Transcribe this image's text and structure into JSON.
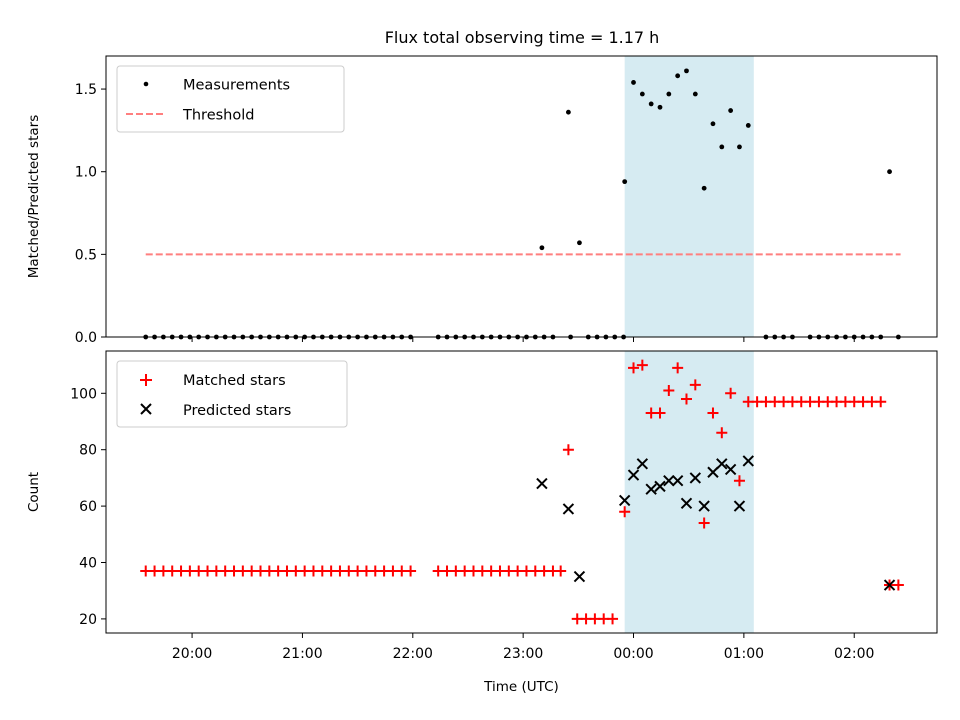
{
  "figure": {
    "title": "Flux total observing time = 1.17 h",
    "xlabel": "Time (UTC)",
    "x_tick_labels": [
      "20:00",
      "21:00",
      "22:00",
      "23:00",
      "00:00",
      "01:00",
      "02:00"
    ],
    "highlight_color": "#add8e6"
  },
  "chart_data": [
    {
      "type": "scatter",
      "title": "Flux total observing time = 1.17 h",
      "xlabel": "",
      "ylabel": "Matched/Predicted stars",
      "x_unit": "hours relative to 00:00 UTC (negative = before midnight)",
      "xlim": [
        -4.78,
        2.75
      ],
      "ylim": [
        0,
        1.7
      ],
      "y_ticks": [
        0.0,
        0.5,
        1.0,
        1.5
      ],
      "y_tick_labels": [
        "0.0",
        "0.5",
        "1.0",
        "1.5"
      ],
      "highlight_span": [
        -0.08,
        1.09
      ],
      "legend": {
        "position": "top-left",
        "entries": [
          "Measurements",
          "Threshold"
        ]
      },
      "series": [
        {
          "name": "Measurements",
          "marker": "dot",
          "color": "#000000",
          "x": [
            -4.42,
            -4.34,
            -4.26,
            -4.18,
            -4.1,
            -4.02,
            -3.94,
            -3.86,
            -3.78,
            -3.7,
            -3.62,
            -3.54,
            -3.46,
            -3.38,
            -3.3,
            -3.22,
            -3.14,
            -3.06,
            -2.98,
            -2.9,
            -2.82,
            -2.74,
            -2.66,
            -2.58,
            -2.5,
            -2.42,
            -2.34,
            -2.26,
            -2.18,
            -2.1,
            -2.02,
            -1.77,
            -1.69,
            -1.61,
            -1.53,
            -1.45,
            -1.37,
            -1.29,
            -1.21,
            -1.13,
            -1.05,
            -0.97,
            -0.89,
            -0.81,
            -0.73,
            -0.57,
            -0.41,
            -0.33,
            -0.25,
            -0.17,
            -0.09,
            -0.08,
            0.0,
            0.08,
            0.16,
            0.24,
            0.32,
            0.4,
            0.48,
            0.56,
            0.64,
            0.72,
            0.8,
            0.88,
            0.96,
            1.04,
            1.2,
            1.28,
            1.36,
            1.44,
            1.6,
            1.68,
            1.76,
            1.84,
            1.92,
            2.0,
            2.08,
            2.16,
            2.24,
            2.32,
            2.4
          ],
          "y": [
            0,
            0,
            0,
            0,
            0,
            0,
            0,
            0,
            0,
            0,
            0,
            0,
            0,
            0,
            0,
            0,
            0,
            0,
            0,
            0,
            0,
            0,
            0,
            0,
            0,
            0,
            0,
            0,
            0,
            0,
            0,
            0,
            0,
            0,
            0,
            0,
            0,
            0,
            0,
            0,
            0,
            0,
            0,
            0,
            0,
            0,
            0,
            0,
            0,
            0,
            0,
            0.94,
            1.54,
            1.47,
            1.41,
            1.39,
            1.47,
            1.58,
            1.61,
            1.47,
            0.9,
            1.29,
            1.15,
            1.37,
            1.15,
            1.28,
            0,
            0,
            0,
            0,
            0,
            0,
            0,
            0,
            0,
            0,
            0,
            0,
            0,
            1.0,
            0
          ]
        },
        {
          "name": "Threshold",
          "marker": "line-dashed",
          "color": "#ff7f7f",
          "x": [
            -4.42,
            2.42
          ],
          "y": [
            0.5,
            0.5
          ]
        }
      ],
      "extra_points": {
        "x": [
          -0.83,
          -0.59,
          -0.49
        ],
        "y": [
          0.54,
          1.36,
          0.57
        ]
      }
    },
    {
      "type": "scatter",
      "xlabel": "Time (UTC)",
      "ylabel": "Count",
      "x_unit": "hours relative to 00:00 UTC (negative = before midnight)",
      "xlim": [
        -4.78,
        2.75
      ],
      "ylim": [
        15,
        115
      ],
      "y_ticks": [
        20,
        40,
        60,
        80,
        100
      ],
      "y_tick_labels": [
        "20",
        "40",
        "60",
        "80",
        "100"
      ],
      "x_ticks": [
        -4,
        -3,
        -2,
        -1,
        0,
        1,
        2
      ],
      "x_tick_labels": [
        "20:00",
        "21:00",
        "22:00",
        "23:00",
        "00:00",
        "01:00",
        "02:00"
      ],
      "highlight_span": [
        -0.08,
        1.09
      ],
      "legend": {
        "position": "top-left",
        "entries": [
          "Matched stars",
          "Predicted stars"
        ]
      },
      "series": [
        {
          "name": "Matched stars",
          "marker": "plus",
          "color": "#ff0000",
          "x": [
            -4.42,
            -4.34,
            -4.26,
            -4.18,
            -4.1,
            -4.02,
            -3.94,
            -3.86,
            -3.78,
            -3.7,
            -3.62,
            -3.54,
            -3.46,
            -3.38,
            -3.3,
            -3.22,
            -3.14,
            -3.06,
            -2.98,
            -2.9,
            -2.82,
            -2.74,
            -2.66,
            -2.58,
            -2.5,
            -2.42,
            -2.34,
            -2.26,
            -2.18,
            -2.1,
            -2.02,
            -1.77,
            -1.69,
            -1.61,
            -1.53,
            -1.45,
            -1.37,
            -1.29,
            -1.21,
            -1.13,
            -1.05,
            -0.97,
            -0.89,
            -0.81,
            -0.73,
            -0.66,
            -0.59,
            -0.51,
            -0.43,
            -0.35,
            -0.27,
            -0.19,
            -0.08,
            0.0,
            0.08,
            0.16,
            0.24,
            0.32,
            0.4,
            0.48,
            0.56,
            0.64,
            0.72,
            0.8,
            0.88,
            0.96,
            1.04,
            1.12,
            1.2,
            1.28,
            1.36,
            1.44,
            1.52,
            1.6,
            1.68,
            1.76,
            1.84,
            1.92,
            2.0,
            2.08,
            2.16,
            2.24,
            2.32,
            2.4
          ],
          "y": [
            37,
            37,
            37,
            37,
            37,
            37,
            37,
            37,
            37,
            37,
            37,
            37,
            37,
            37,
            37,
            37,
            37,
            37,
            37,
            37,
            37,
            37,
            37,
            37,
            37,
            37,
            37,
            37,
            37,
            37,
            37,
            37,
            37,
            37,
            37,
            37,
            37,
            37,
            37,
            37,
            37,
            37,
            37,
            37,
            37,
            37,
            80,
            20,
            20,
            20,
            20,
            20,
            58,
            109,
            110,
            93,
            93,
            101,
            109,
            98,
            103,
            54,
            93,
            86,
            100,
            69,
            97,
            97,
            97,
            97,
            97,
            97,
            97,
            97,
            97,
            97,
            97,
            97,
            97,
            97,
            97,
            97,
            32,
            32
          ]
        },
        {
          "name": "Predicted stars",
          "marker": "x",
          "color": "#000000",
          "x": [
            -0.83,
            -0.59,
            -0.49,
            -0.08,
            0.0,
            0.08,
            0.16,
            0.24,
            0.32,
            0.4,
            0.48,
            0.56,
            0.64,
            0.72,
            0.8,
            0.88,
            0.96,
            1.04,
            2.32
          ],
          "y": [
            68,
            59,
            35,
            62,
            71,
            75,
            66,
            67,
            69,
            69,
            61,
            70,
            60,
            72,
            75,
            73,
            60,
            76,
            32
          ]
        }
      ]
    }
  ]
}
